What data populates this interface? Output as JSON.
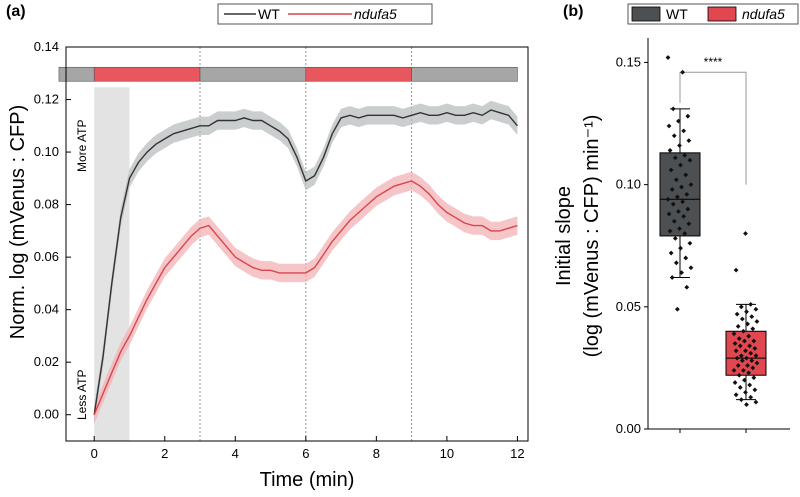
{
  "chart_data": [
    {
      "panel": "(a)",
      "type": "line",
      "xlabel": "Time (min)",
      "ylabel": "Norm. log (mVenus : CFP)",
      "xlim": [
        -0.8,
        12.3
      ],
      "ylim": [
        -0.01,
        0.14
      ],
      "xticks": [
        0,
        2,
        4,
        6,
        8,
        10,
        12
      ],
      "yticks": [
        0.0,
        0.02,
        0.04,
        0.06,
        0.08,
        0.1,
        0.12,
        0.14
      ],
      "xtick_labels": [
        "0",
        "2",
        "4",
        "6",
        "8",
        "10",
        "12"
      ],
      "ytick_labels": [
        "0.00",
        "0.02",
        "0.04",
        "0.06",
        "0.08",
        "0.10",
        "0.12",
        "0.14"
      ],
      "legend": [
        "WT",
        "ndufa5"
      ],
      "annotations": {
        "top": "More ATP",
        "bottom": "Less ATP"
      },
      "shaded_region_x": [
        0,
        1
      ],
      "dotted_lines_x": [
        3,
        6,
        9
      ],
      "condition_bar": [
        {
          "start": -1,
          "end": 0,
          "color": "#a6a6a6"
        },
        {
          "start": 0,
          "end": 3,
          "color": "#e8575d"
        },
        {
          "start": 3,
          "end": 6,
          "color": "#a6a6a6"
        },
        {
          "start": 6,
          "end": 9,
          "color": "#e8575d"
        },
        {
          "start": 9,
          "end": 12,
          "color": "#a6a6a6"
        }
      ],
      "series": [
        {
          "name": "WT",
          "color": "#333333",
          "band_color": "#b9bdbf",
          "x": [
            0,
            0.25,
            0.5,
            0.75,
            1,
            1.25,
            1.5,
            1.75,
            2,
            2.25,
            2.5,
            2.75,
            3,
            3.25,
            3.5,
            3.75,
            4,
            4.25,
            4.5,
            4.75,
            5,
            5.25,
            5.5,
            5.75,
            6,
            6.25,
            6.5,
            6.75,
            7,
            7.25,
            7.5,
            7.75,
            8,
            8.25,
            8.5,
            8.75,
            9,
            9.25,
            9.5,
            9.75,
            10,
            10.25,
            10.5,
            10.75,
            11,
            11.25,
            11.5,
            11.75,
            12
          ],
          "values": [
            0.0,
            0.022,
            0.05,
            0.075,
            0.09,
            0.096,
            0.1,
            0.103,
            0.105,
            0.107,
            0.108,
            0.109,
            0.11,
            0.11,
            0.112,
            0.112,
            0.112,
            0.113,
            0.112,
            0.112,
            0.11,
            0.108,
            0.105,
            0.098,
            0.089,
            0.091,
            0.098,
            0.107,
            0.113,
            0.114,
            0.113,
            0.114,
            0.114,
            0.114,
            0.114,
            0.113,
            0.114,
            0.115,
            0.114,
            0.114,
            0.115,
            0.114,
            0.114,
            0.115,
            0.114,
            0.116,
            0.115,
            0.114,
            0.11
          ],
          "error": 0.0035
        },
        {
          "name": "ndufa5",
          "color": "#d9464d",
          "band_color": "#f1b2b4",
          "x": [
            0,
            0.25,
            0.5,
            0.75,
            1,
            1.25,
            1.5,
            1.75,
            2,
            2.25,
            2.5,
            2.75,
            3,
            3.25,
            3.5,
            3.75,
            4,
            4.25,
            4.5,
            4.75,
            5,
            5.25,
            5.5,
            5.75,
            6,
            6.25,
            6.5,
            6.75,
            7,
            7.25,
            7.5,
            7.75,
            8,
            8.25,
            8.5,
            8.75,
            9,
            9.25,
            9.5,
            9.75,
            10,
            10.25,
            10.5,
            10.75,
            11,
            11.25,
            11.5,
            11.75,
            12
          ],
          "values": [
            0.0,
            0.008,
            0.016,
            0.024,
            0.03,
            0.037,
            0.044,
            0.05,
            0.056,
            0.06,
            0.064,
            0.068,
            0.071,
            0.072,
            0.068,
            0.064,
            0.06,
            0.058,
            0.056,
            0.055,
            0.055,
            0.054,
            0.054,
            0.054,
            0.054,
            0.056,
            0.061,
            0.066,
            0.07,
            0.074,
            0.077,
            0.08,
            0.083,
            0.085,
            0.087,
            0.088,
            0.089,
            0.087,
            0.084,
            0.08,
            0.077,
            0.075,
            0.073,
            0.072,
            0.072,
            0.07,
            0.07,
            0.071,
            0.072
          ],
          "error": 0.0035
        }
      ]
    },
    {
      "panel": "(b)",
      "type": "box",
      "ylabel_line1": "Initial slope",
      "ylabel_line2": "(log (mVenus : CFP) min⁻¹)",
      "ylim": [
        0.0,
        0.16
      ],
      "yticks": [
        0.0,
        0.05,
        0.1,
        0.15
      ],
      "ytick_labels": [
        "0.00",
        "0.05",
        "0.10",
        "0.15"
      ],
      "legend": [
        "WT",
        "ndufa5"
      ],
      "significance": "****",
      "groups": [
        {
          "name": "WT",
          "color": "#4d5052",
          "q1": 0.079,
          "median": 0.094,
          "q3": 0.113,
          "whisker_low": 0.062,
          "whisker_high": 0.131,
          "points": [
            0.152,
            0.146,
            0.131,
            0.128,
            0.126,
            0.124,
            0.122,
            0.12,
            0.118,
            0.116,
            0.114,
            0.112,
            0.111,
            0.11,
            0.108,
            0.106,
            0.104,
            0.102,
            0.1,
            0.099,
            0.098,
            0.096,
            0.095,
            0.094,
            0.093,
            0.092,
            0.09,
            0.089,
            0.088,
            0.087,
            0.085,
            0.084,
            0.082,
            0.081,
            0.08,
            0.078,
            0.076,
            0.074,
            0.072,
            0.07,
            0.068,
            0.066,
            0.064,
            0.062,
            0.058,
            0.049
          ]
        },
        {
          "name": "ndufa5",
          "color": "#e0474f",
          "q1": 0.022,
          "median": 0.029,
          "q3": 0.04,
          "whisker_low": 0.012,
          "whisker_high": 0.051,
          "points": [
            0.08,
            0.065,
            0.051,
            0.05,
            0.049,
            0.048,
            0.047,
            0.046,
            0.045,
            0.044,
            0.043,
            0.042,
            0.041,
            0.04,
            0.039,
            0.038,
            0.037,
            0.036,
            0.036,
            0.035,
            0.034,
            0.034,
            0.033,
            0.032,
            0.032,
            0.031,
            0.03,
            0.03,
            0.029,
            0.029,
            0.028,
            0.028,
            0.027,
            0.026,
            0.026,
            0.025,
            0.024,
            0.024,
            0.023,
            0.022,
            0.021,
            0.02,
            0.019,
            0.018,
            0.017,
            0.016,
            0.015,
            0.014,
            0.013,
            0.012,
            0.011,
            0.01
          ]
        }
      ]
    }
  ]
}
